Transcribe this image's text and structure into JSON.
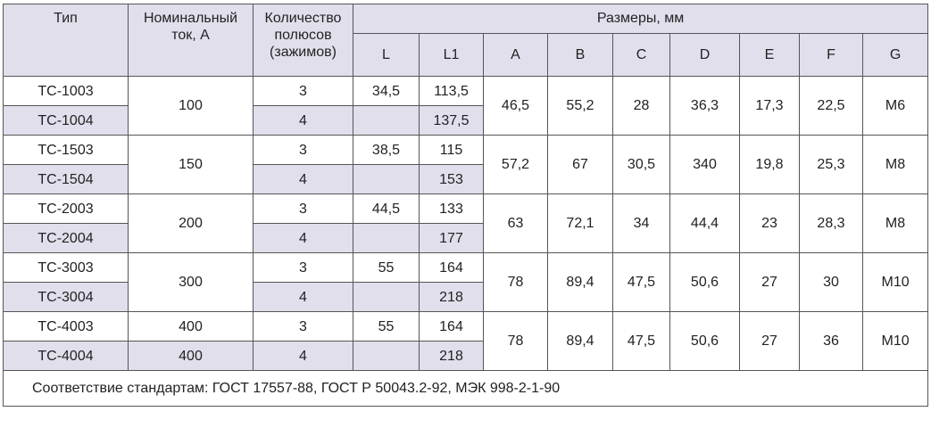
{
  "table": {
    "header": {
      "type": "Тип",
      "current": "Номинальный\nток, А",
      "poles": "Количество\nполюсов\n(зажимов)",
      "sizes": "Размеры, мм",
      "columns": [
        "L",
        "L1",
        "A",
        "B",
        "C",
        "D",
        "E",
        "F",
        "G"
      ]
    },
    "groups": [
      {
        "currents": [
          "100"
        ],
        "rows": [
          {
            "type": "TC-1003",
            "poles": "3",
            "L": "34,5",
            "L1": "113,5"
          },
          {
            "type": "TC-1004",
            "poles": "4",
            "L1": "137,5"
          }
        ],
        "dims": [
          "46,5",
          "55,2",
          "28",
          "36,3",
          "17,3",
          "22,5",
          "M6"
        ]
      },
      {
        "currents": [
          "150"
        ],
        "rows": [
          {
            "type": "TC-1503",
            "poles": "3",
            "L": "38,5",
            "L1": "115"
          },
          {
            "type": "TC-1504",
            "poles": "4",
            "L1": "153"
          }
        ],
        "dims": [
          "57,2",
          "67",
          "30,5",
          "340",
          "19,8",
          "25,3",
          "M8"
        ]
      },
      {
        "currents": [
          "200"
        ],
        "rows": [
          {
            "type": "TC-2003",
            "poles": "3",
            "L": "44,5",
            "L1": "133"
          },
          {
            "type": "TC-2004",
            "poles": "4",
            "L1": "177"
          }
        ],
        "dims": [
          "63",
          "72,1",
          "34",
          "44,4",
          "23",
          "28,3",
          "M8"
        ]
      },
      {
        "currents": [
          "300"
        ],
        "rows": [
          {
            "type": "TC-3003",
            "poles": "3",
            "L": "55",
            "L1": "164"
          },
          {
            "type": "TC-3004",
            "poles": "4",
            "L1": "218"
          }
        ],
        "dims": [
          "78",
          "89,4",
          "47,5",
          "50,6",
          "27",
          "30",
          "M10"
        ]
      },
      {
        "currents": [
          "400",
          "400"
        ],
        "rows": [
          {
            "type": "TC-4003",
            "poles": "3",
            "L": "55",
            "L1": "164"
          },
          {
            "type": "TC-4004",
            "poles": "4",
            "L1": "218"
          }
        ],
        "dims": [
          "78",
          "89,4",
          "47,5",
          "50,6",
          "27",
          "36",
          "M10"
        ]
      }
    ],
    "footer": "Соответствие стандартам: ГОСТ 17557-88, ГОСТ Р 50043.2-92, МЭК 998-2-1-90"
  }
}
